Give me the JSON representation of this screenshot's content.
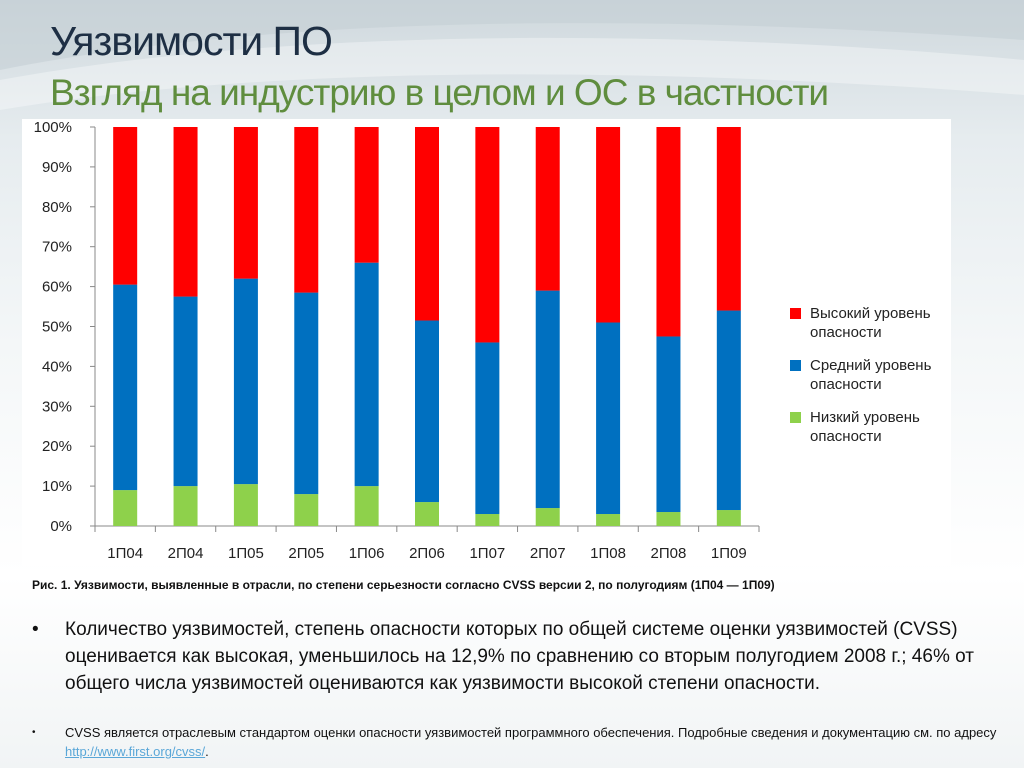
{
  "slide": {
    "title": "Уязвимости ПО",
    "subtitle": "Взгляд на индустрию в целом и ОС в частности"
  },
  "chart_data": {
    "type": "bar",
    "stacked": true,
    "percent": true,
    "categories": [
      "1П04",
      "2П04",
      "1П05",
      "2П05",
      "1П06",
      "2П06",
      "1П07",
      "2П07",
      "1П08",
      "2П08",
      "1П09"
    ],
    "series": [
      {
        "name": "Низкий уровень опасности",
        "color": "#8ed14b",
        "values": [
          9,
          10,
          10.5,
          8,
          10,
          6,
          3,
          4.5,
          3,
          3.5,
          4
        ]
      },
      {
        "name": "Средний уровень опасности",
        "color": "#0070c0",
        "values": [
          51.5,
          47.5,
          51.5,
          50.5,
          56,
          45.5,
          43,
          54.5,
          48,
          44,
          50
        ]
      },
      {
        "name": "Высокий уровень опасности",
        "color": "#ff0000",
        "values": [
          39.5,
          42.5,
          38,
          41.5,
          34,
          48.5,
          54,
          41,
          49,
          52.5,
          46
        ]
      }
    ],
    "legend_order": [
      2,
      1,
      0
    ],
    "ylim": [
      0,
      100
    ],
    "yticks": [
      "0%",
      "10%",
      "20%",
      "30%",
      "40%",
      "50%",
      "60%",
      "70%",
      "80%",
      "90%",
      "100%"
    ],
    "legend_position": "right",
    "grid": false
  },
  "caption": "Рис. 1. Уязвимости, выявленные в отрасли, по степени серьезности согласно CVSS версии 2, по полугодиям (1П04 — 1П09)",
  "bullets": {
    "mark": "•",
    "main": "Количество уязвимостей, степень опасности которых по общей системе оценки уязвимостей (CVSS) оценивается как высокая, уменьшилось на 12,9% по сравнению со вторым полугодием 2008 г.; 46% от общего числа уязвимостей оцениваются как уязвимости высокой степени опасности.",
    "note_text": "CVSS является отраслевым стандартом оценки опасности уязвимостей программного обеспечения. Подробные сведения и документацию см. по адресу ",
    "note_link": "http://www.first.org/cvss/",
    "note_end": "."
  }
}
